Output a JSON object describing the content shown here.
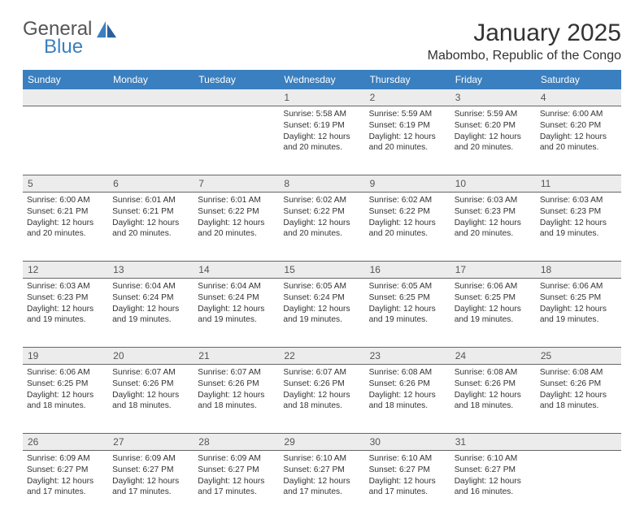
{
  "brand": {
    "line1": "General",
    "line2": "Blue"
  },
  "title": "January 2025",
  "location": "Mabombo, Republic of the Congo",
  "colors": {
    "header_bg": "#3a7fbf",
    "header_text": "#ffffff",
    "daynum_bg": "#ececec",
    "daynum_text": "#555555",
    "cell_text": "#333333",
    "rule": "#666666",
    "page_bg": "#ffffff",
    "brand_gray": "#555555",
    "brand_blue": "#3a7fbf"
  },
  "typography": {
    "title_fontsize": 30,
    "location_fontsize": 16,
    "weekday_fontsize": 12,
    "daynum_fontsize": 12,
    "cell_fontsize": 10.2
  },
  "calendar": {
    "type": "table",
    "weekdays": [
      "Sunday",
      "Monday",
      "Tuesday",
      "Wednesday",
      "Thursday",
      "Friday",
      "Saturday"
    ],
    "weeks": [
      {
        "nums": [
          "",
          "",
          "",
          "1",
          "2",
          "3",
          "4"
        ],
        "cells": [
          null,
          null,
          null,
          {
            "sunrise": "5:58 AM",
            "sunset": "6:19 PM",
            "daylight": "12 hours and 20 minutes."
          },
          {
            "sunrise": "5:59 AM",
            "sunset": "6:19 PM",
            "daylight": "12 hours and 20 minutes."
          },
          {
            "sunrise": "5:59 AM",
            "sunset": "6:20 PM",
            "daylight": "12 hours and 20 minutes."
          },
          {
            "sunrise": "6:00 AM",
            "sunset": "6:20 PM",
            "daylight": "12 hours and 20 minutes."
          }
        ]
      },
      {
        "nums": [
          "5",
          "6",
          "7",
          "8",
          "9",
          "10",
          "11"
        ],
        "cells": [
          {
            "sunrise": "6:00 AM",
            "sunset": "6:21 PM",
            "daylight": "12 hours and 20 minutes."
          },
          {
            "sunrise": "6:01 AM",
            "sunset": "6:21 PM",
            "daylight": "12 hours and 20 minutes."
          },
          {
            "sunrise": "6:01 AM",
            "sunset": "6:22 PM",
            "daylight": "12 hours and 20 minutes."
          },
          {
            "sunrise": "6:02 AM",
            "sunset": "6:22 PM",
            "daylight": "12 hours and 20 minutes."
          },
          {
            "sunrise": "6:02 AM",
            "sunset": "6:22 PM",
            "daylight": "12 hours and 20 minutes."
          },
          {
            "sunrise": "6:03 AM",
            "sunset": "6:23 PM",
            "daylight": "12 hours and 20 minutes."
          },
          {
            "sunrise": "6:03 AM",
            "sunset": "6:23 PM",
            "daylight": "12 hours and 19 minutes."
          }
        ]
      },
      {
        "nums": [
          "12",
          "13",
          "14",
          "15",
          "16",
          "17",
          "18"
        ],
        "cells": [
          {
            "sunrise": "6:03 AM",
            "sunset": "6:23 PM",
            "daylight": "12 hours and 19 minutes."
          },
          {
            "sunrise": "6:04 AM",
            "sunset": "6:24 PM",
            "daylight": "12 hours and 19 minutes."
          },
          {
            "sunrise": "6:04 AM",
            "sunset": "6:24 PM",
            "daylight": "12 hours and 19 minutes."
          },
          {
            "sunrise": "6:05 AM",
            "sunset": "6:24 PM",
            "daylight": "12 hours and 19 minutes."
          },
          {
            "sunrise": "6:05 AM",
            "sunset": "6:25 PM",
            "daylight": "12 hours and 19 minutes."
          },
          {
            "sunrise": "6:06 AM",
            "sunset": "6:25 PM",
            "daylight": "12 hours and 19 minutes."
          },
          {
            "sunrise": "6:06 AM",
            "sunset": "6:25 PM",
            "daylight": "12 hours and 19 minutes."
          }
        ]
      },
      {
        "nums": [
          "19",
          "20",
          "21",
          "22",
          "23",
          "24",
          "25"
        ],
        "cells": [
          {
            "sunrise": "6:06 AM",
            "sunset": "6:25 PM",
            "daylight": "12 hours and 18 minutes."
          },
          {
            "sunrise": "6:07 AM",
            "sunset": "6:26 PM",
            "daylight": "12 hours and 18 minutes."
          },
          {
            "sunrise": "6:07 AM",
            "sunset": "6:26 PM",
            "daylight": "12 hours and 18 minutes."
          },
          {
            "sunrise": "6:07 AM",
            "sunset": "6:26 PM",
            "daylight": "12 hours and 18 minutes."
          },
          {
            "sunrise": "6:08 AM",
            "sunset": "6:26 PM",
            "daylight": "12 hours and 18 minutes."
          },
          {
            "sunrise": "6:08 AM",
            "sunset": "6:26 PM",
            "daylight": "12 hours and 18 minutes."
          },
          {
            "sunrise": "6:08 AM",
            "sunset": "6:26 PM",
            "daylight": "12 hours and 18 minutes."
          }
        ]
      },
      {
        "nums": [
          "26",
          "27",
          "28",
          "29",
          "30",
          "31",
          ""
        ],
        "cells": [
          {
            "sunrise": "6:09 AM",
            "sunset": "6:27 PM",
            "daylight": "12 hours and 17 minutes."
          },
          {
            "sunrise": "6:09 AM",
            "sunset": "6:27 PM",
            "daylight": "12 hours and 17 minutes."
          },
          {
            "sunrise": "6:09 AM",
            "sunset": "6:27 PM",
            "daylight": "12 hours and 17 minutes."
          },
          {
            "sunrise": "6:10 AM",
            "sunset": "6:27 PM",
            "daylight": "12 hours and 17 minutes."
          },
          {
            "sunrise": "6:10 AM",
            "sunset": "6:27 PM",
            "daylight": "12 hours and 17 minutes."
          },
          {
            "sunrise": "6:10 AM",
            "sunset": "6:27 PM",
            "daylight": "12 hours and 16 minutes."
          },
          null
        ]
      }
    ]
  },
  "labels": {
    "sunrise": "Sunrise:",
    "sunset": "Sunset:",
    "daylight": "Daylight:"
  }
}
